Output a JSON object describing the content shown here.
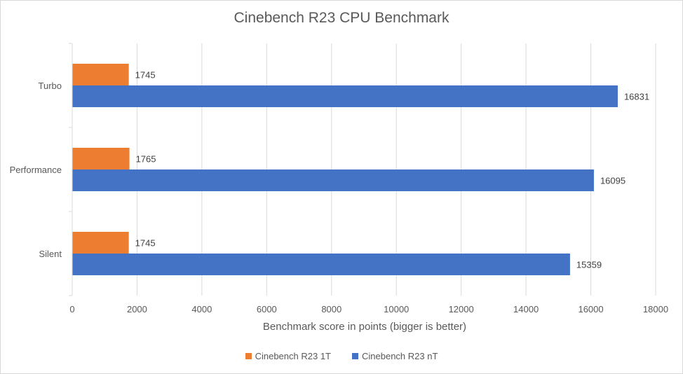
{
  "chart_data": {
    "type": "bar",
    "orientation": "horizontal",
    "title": "Cinebench R23 CPU Benchmark",
    "xlabel": "Benchmark score in points (bigger is better)",
    "ylabel": "",
    "categories": [
      "Turbo",
      "Performance",
      "Silent"
    ],
    "series": [
      {
        "name": "Cinebench R23 1T",
        "color": "#ED7D31",
        "values": [
          1745,
          1765,
          1745
        ]
      },
      {
        "name": "Cinebench R23 nT",
        "color": "#4472C4",
        "values": [
          16831,
          16095,
          15359
        ]
      }
    ],
    "xlim": [
      0,
      18000
    ],
    "xticks": [
      "0",
      "2000",
      "4000",
      "6000",
      "8000",
      "10000",
      "12000",
      "14000",
      "16000",
      "18000"
    ],
    "grid": true,
    "legend": "bottom"
  }
}
